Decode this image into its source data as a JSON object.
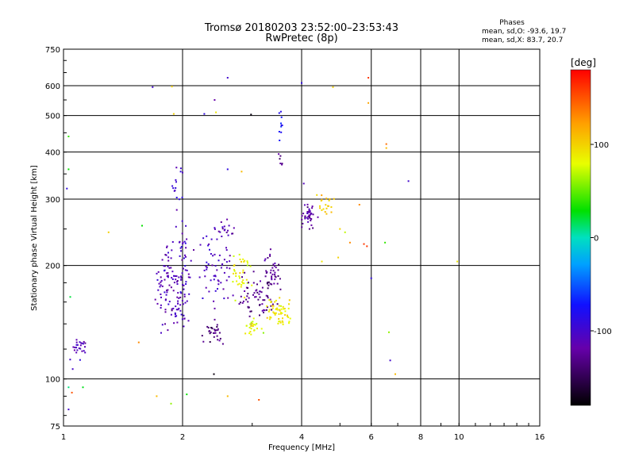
{
  "chart_data": {
    "type": "scatter",
    "title": "Tromsø 20180203 23:52:00–23:53:43",
    "subtitle": "RwPretec (8p)",
    "xlabel": "Frequency [MHz]",
    "ylabel": "Stationary phase Virtual Height [km]",
    "x_scale": "log",
    "y_scale": "log",
    "xlim": [
      1,
      16
    ],
    "ylim": [
      75,
      750
    ],
    "x_ticks": [
      1,
      2,
      4,
      6,
      8,
      10,
      16
    ],
    "y_ticks": [
      75,
      100,
      200,
      300,
      400,
      500,
      600,
      750
    ],
    "grid": true,
    "stats": {
      "heading": "Phases",
      "line_o": "mean, sd,O: -93.6, 19.7",
      "line_x": "mean, sd,X:  83.7, 20.7"
    },
    "colorbar": {
      "label": "[deg]",
      "range": [
        -180,
        180
      ],
      "ticks": [
        100,
        0,
        -100
      ],
      "colormap": "rainbow"
    },
    "colors": {
      "scatter_dark_blue": "#2010a0",
      "scatter_blue": "#0050ff",
      "scatter_yellow": "#e8f000",
      "grid": "#000000"
    },
    "clusters": [
      {
        "x": 1.09,
        "y": 120,
        "phase": -110,
        "fx": 0.05,
        "fy": 0.08,
        "n": 26
      },
      {
        "x": 1.85,
        "y": 175,
        "phase": -112,
        "fx": 0.08,
        "fy": 0.22,
        "n": 90
      },
      {
        "x": 2.0,
        "y": 185,
        "phase": -105,
        "fx": 0.04,
        "fy": 0.28,
        "n": 60
      },
      {
        "x": 2.4,
        "y": 190,
        "phase": -108,
        "fx": 0.1,
        "fy": 0.2,
        "n": 60
      },
      {
        "x": 2.55,
        "y": 250,
        "phase": -115,
        "fx": 0.06,
        "fy": 0.04,
        "n": 18
      },
      {
        "x": 2.8,
        "y": 190,
        "phase": 85,
        "fx": 0.05,
        "fy": 0.12,
        "n": 40
      },
      {
        "x": 3.1,
        "y": 165,
        "phase": -130,
        "fx": 0.1,
        "fy": 0.12,
        "n": 70
      },
      {
        "x": 3.5,
        "y": 150,
        "phase": 90,
        "fx": 0.07,
        "fy": 0.08,
        "n": 60
      },
      {
        "x": 3.4,
        "y": 190,
        "phase": -125,
        "fx": 0.06,
        "fy": 0.1,
        "n": 35
      },
      {
        "x": 2.4,
        "y": 132,
        "phase": -135,
        "fx": 0.06,
        "fy": 0.05,
        "n": 30
      },
      {
        "x": 3.0,
        "y": 138,
        "phase": 80,
        "fx": 0.05,
        "fy": 0.04,
        "n": 25
      },
      {
        "x": 4.2,
        "y": 270,
        "phase": -120,
        "fx": 0.04,
        "fy": 0.06,
        "n": 40
      },
      {
        "x": 4.6,
        "y": 290,
        "phase": 110,
        "fx": 0.04,
        "fy": 0.06,
        "n": 20
      },
      {
        "x": 1.95,
        "y": 330,
        "phase": -100,
        "fx": 0.03,
        "fy": 0.12,
        "n": 14
      },
      {
        "x": 3.55,
        "y": 480,
        "phase": -80,
        "fx": 0.01,
        "fy": 0.08,
        "n": 10
      },
      {
        "x": 3.55,
        "y": 380,
        "phase": -130,
        "fx": 0.01,
        "fy": 0.04,
        "n": 6
      }
    ],
    "singles": [
      {
        "x": 1.03,
        "y": 440,
        "phase": 40
      },
      {
        "x": 1.03,
        "y": 360,
        "phase": 30
      },
      {
        "x": 1.02,
        "y": 320,
        "phase": -90
      },
      {
        "x": 1.04,
        "y": 165,
        "phase": 20
      },
      {
        "x": 1.03,
        "y": 95,
        "phase": 10
      },
      {
        "x": 1.05,
        "y": 92,
        "phase": 150
      },
      {
        "x": 1.03,
        "y": 83,
        "phase": -100
      },
      {
        "x": 1.12,
        "y": 95,
        "phase": 25
      },
      {
        "x": 1.3,
        "y": 245,
        "phase": 100
      },
      {
        "x": 1.58,
        "y": 255,
        "phase": 30
      },
      {
        "x": 1.55,
        "y": 125,
        "phase": 130
      },
      {
        "x": 1.68,
        "y": 595,
        "phase": -100
      },
      {
        "x": 1.88,
        "y": 597,
        "phase": 100
      },
      {
        "x": 1.9,
        "y": 505,
        "phase": 100
      },
      {
        "x": 1.72,
        "y": 90,
        "phase": 110
      },
      {
        "x": 1.87,
        "y": 86,
        "phase": 60
      },
      {
        "x": 2.05,
        "y": 91,
        "phase": 30
      },
      {
        "x": 2.27,
        "y": 505,
        "phase": -90
      },
      {
        "x": 2.41,
        "y": 550,
        "phase": -120
      },
      {
        "x": 2.6,
        "y": 630,
        "phase": -100
      },
      {
        "x": 2.43,
        "y": 510,
        "phase": 90
      },
      {
        "x": 2.98,
        "y": 503,
        "phase": -175
      },
      {
        "x": 2.6,
        "y": 360,
        "phase": -90
      },
      {
        "x": 2.82,
        "y": 355,
        "phase": 110
      },
      {
        "x": 2.6,
        "y": 90,
        "phase": 110
      },
      {
        "x": 2.4,
        "y": 103,
        "phase": -175
      },
      {
        "x": 3.12,
        "y": 88,
        "phase": 150
      },
      {
        "x": 4.0,
        "y": 610,
        "phase": -90
      },
      {
        "x": 4.8,
        "y": 595,
        "phase": 100
      },
      {
        "x": 4.05,
        "y": 330,
        "phase": -110
      },
      {
        "x": 4.95,
        "y": 210,
        "phase": 100
      },
      {
        "x": 4.5,
        "y": 205,
        "phase": 90
      },
      {
        "x": 5.0,
        "y": 250,
        "phase": 100
      },
      {
        "x": 5.15,
        "y": 245,
        "phase": 70
      },
      {
        "x": 5.3,
        "y": 230,
        "phase": 130
      },
      {
        "x": 5.6,
        "y": 290,
        "phase": 130
      },
      {
        "x": 5.9,
        "y": 630,
        "phase": 160
      },
      {
        "x": 5.9,
        "y": 540,
        "phase": 120
      },
      {
        "x": 5.75,
        "y": 228,
        "phase": 160
      },
      {
        "x": 5.85,
        "y": 225,
        "phase": 160
      },
      {
        "x": 6.0,
        "y": 185,
        "phase": -90
      },
      {
        "x": 6.55,
        "y": 420,
        "phase": 140
      },
      {
        "x": 6.55,
        "y": 410,
        "phase": 110
      },
      {
        "x": 6.5,
        "y": 230,
        "phase": 40
      },
      {
        "x": 6.7,
        "y": 112,
        "phase": -100
      },
      {
        "x": 6.9,
        "y": 103,
        "phase": 110
      },
      {
        "x": 7.45,
        "y": 335,
        "phase": -100
      },
      {
        "x": 6.65,
        "y": 133,
        "phase": 60
      },
      {
        "x": 9.9,
        "y": 205,
        "phase": 90
      }
    ]
  }
}
